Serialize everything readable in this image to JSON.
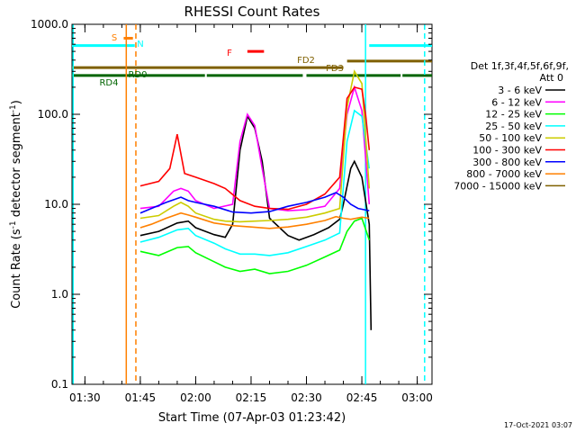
{
  "chart_data": {
    "type": "line",
    "title": "RHESSI Count Rates",
    "xlabel": "Start Time (07-Apr-03 01:23:42)",
    "ylabel_prefix": "Count Rate (s",
    "ylabel_sup": "-1",
    "ylabel_middle": " detector segment",
    "ylabel_suffix": ")",
    "timestamp": "17-Oct-2021 03:07",
    "y_scale": "log",
    "ylim": [
      0.1,
      1000
    ],
    "xlim_minutes": [
      86.5,
      184
    ],
    "y_ticks": [
      {
        "value": 1000,
        "label": "1000.0"
      },
      {
        "value": 100,
        "label": "100.0"
      },
      {
        "value": 10,
        "label": "10.0"
      },
      {
        "value": 1,
        "label": "1.0"
      },
      {
        "value": 0.1,
        "label": "0.1"
      }
    ],
    "x_ticks": [
      {
        "minutes": 90,
        "label": "01:30"
      },
      {
        "minutes": 105,
        "label": "01:45"
      },
      {
        "minutes": 120,
        "label": "02:00"
      },
      {
        "minutes": 135,
        "label": "02:15"
      },
      {
        "minutes": 150,
        "label": "02:30"
      },
      {
        "minutes": 165,
        "label": "02:45"
      },
      {
        "minutes": 180,
        "label": "03:00"
      }
    ],
    "legend": {
      "header1": "Det 1f,3f,4f,5f,6f,9f,",
      "header2": "Att 0",
      "placement": "right"
    },
    "series": [
      {
        "name": "3 - 6 keV",
        "color": "#000000",
        "points": [
          [
            105,
            4.5
          ],
          [
            110,
            5.0
          ],
          [
            115,
            6.2
          ],
          [
            118,
            6.5
          ],
          [
            120,
            5.5
          ],
          [
            125,
            4.6
          ],
          [
            128,
            4.3
          ],
          [
            130,
            6
          ],
          [
            132,
            40
          ],
          [
            134,
            95
          ],
          [
            136,
            70
          ],
          [
            138,
            30
          ],
          [
            140,
            7
          ],
          [
            145,
            4.5
          ],
          [
            148,
            4.0
          ],
          [
            152,
            4.6
          ],
          [
            156,
            5.5
          ],
          [
            159,
            6.8
          ],
          [
            160,
            10
          ],
          [
            162,
            25
          ],
          [
            163,
            30
          ],
          [
            165,
            20
          ],
          [
            167,
            6
          ],
          [
            167.5,
            0.4
          ]
        ]
      },
      {
        "name": "6 - 12 keV",
        "color": "#ff00ff",
        "points": [
          [
            105,
            9
          ],
          [
            110,
            9.5
          ],
          [
            114,
            14
          ],
          [
            116,
            15
          ],
          [
            118,
            14
          ],
          [
            120,
            11
          ],
          [
            125,
            9
          ],
          [
            130,
            10
          ],
          [
            132,
            50
          ],
          [
            134,
            100
          ],
          [
            136,
            75
          ],
          [
            138,
            25
          ],
          [
            140,
            9
          ],
          [
            145,
            8.5
          ],
          [
            150,
            8.7
          ],
          [
            155,
            9.5
          ],
          [
            159,
            15
          ],
          [
            161,
            100
          ],
          [
            163,
            200
          ],
          [
            165,
            110
          ],
          [
            167,
            10
          ]
        ]
      },
      {
        "name": "12 - 25 keV",
        "color": "#00ff00",
        "points": [
          [
            105,
            3.0
          ],
          [
            110,
            2.7
          ],
          [
            115,
            3.3
          ],
          [
            118,
            3.4
          ],
          [
            120,
            2.9
          ],
          [
            125,
            2.3
          ],
          [
            128,
            2.0
          ],
          [
            132,
            1.8
          ],
          [
            136,
            1.9
          ],
          [
            140,
            1.7
          ],
          [
            145,
            1.8
          ],
          [
            150,
            2.1
          ],
          [
            155,
            2.6
          ],
          [
            159,
            3.1
          ],
          [
            161,
            5
          ],
          [
            163,
            6.5
          ],
          [
            165,
            7
          ],
          [
            167,
            4
          ]
        ]
      },
      {
        "name": "25 - 50 keV",
        "color": "#00ffff",
        "points": [
          [
            105,
            3.8
          ],
          [
            110,
            4.3
          ],
          [
            115,
            5.2
          ],
          [
            118,
            5.4
          ],
          [
            120,
            4.5
          ],
          [
            125,
            3.7
          ],
          [
            128,
            3.2
          ],
          [
            132,
            2.8
          ],
          [
            136,
            2.8
          ],
          [
            140,
            2.7
          ],
          [
            145,
            2.9
          ],
          [
            150,
            3.4
          ],
          [
            155,
            4.0
          ],
          [
            159,
            4.8
          ],
          [
            161,
            50
          ],
          [
            163,
            110
          ],
          [
            165,
            95
          ],
          [
            167,
            25
          ]
        ]
      },
      {
        "name": "50 - 100 keV",
        "color": "#cccc00",
        "points": [
          [
            105,
            7
          ],
          [
            110,
            7.5
          ],
          [
            114,
            9.5
          ],
          [
            116,
            10.5
          ],
          [
            118,
            9.5
          ],
          [
            120,
            8
          ],
          [
            125,
            6.8
          ],
          [
            128,
            6.5
          ],
          [
            132,
            6.4
          ],
          [
            136,
            6.5
          ],
          [
            140,
            6.6
          ],
          [
            145,
            6.8
          ],
          [
            150,
            7.2
          ],
          [
            155,
            8.0
          ],
          [
            159,
            9
          ],
          [
            161,
            120
          ],
          [
            163,
            300
          ],
          [
            165,
            220
          ],
          [
            167,
            15
          ]
        ]
      },
      {
        "name": "100 - 300 keV",
        "color": "#ff0000",
        "points": [
          [
            105,
            16
          ],
          [
            110,
            18
          ],
          [
            113,
            25
          ],
          [
            115,
            60
          ],
          [
            117,
            22
          ],
          [
            120,
            20
          ],
          [
            125,
            17
          ],
          [
            128,
            15
          ],
          [
            132,
            11
          ],
          [
            136,
            9.5
          ],
          [
            140,
            9.0
          ],
          [
            145,
            8.8
          ],
          [
            150,
            10
          ],
          [
            155,
            13
          ],
          [
            159,
            20
          ],
          [
            161,
            150
          ],
          [
            163,
            200
          ],
          [
            165,
            190
          ],
          [
            166,
            100
          ],
          [
            167,
            40
          ]
        ]
      },
      {
        "name": "300 - 800 keV",
        "color": "#0000ff",
        "points": [
          [
            105,
            8
          ],
          [
            108,
            9
          ],
          [
            112,
            10.5
          ],
          [
            116,
            12
          ],
          [
            118,
            11
          ],
          [
            120,
            10.5
          ],
          [
            125,
            9.5
          ],
          [
            130,
            8.2
          ],
          [
            135,
            8.0
          ],
          [
            140,
            8.3
          ],
          [
            145,
            9.5
          ],
          [
            150,
            10.5
          ],
          [
            155,
            12
          ],
          [
            158,
            13.5
          ],
          [
            160,
            12
          ],
          [
            162,
            10
          ],
          [
            164,
            9
          ],
          [
            167,
            8.5
          ]
        ]
      },
      {
        "name": "800 - 7000 keV",
        "color": "#ff8000",
        "points": [
          [
            105,
            5.5
          ],
          [
            108,
            6
          ],
          [
            112,
            7
          ],
          [
            116,
            8
          ],
          [
            118,
            7.6
          ],
          [
            120,
            7.2
          ],
          [
            125,
            6.2
          ],
          [
            130,
            5.8
          ],
          [
            135,
            5.6
          ],
          [
            140,
            5.4
          ],
          [
            145,
            5.6
          ],
          [
            150,
            6.0
          ],
          [
            155,
            6.6
          ],
          [
            158,
            7.3
          ],
          [
            160,
            7.0
          ],
          [
            162,
            6.8
          ],
          [
            165,
            7.2
          ],
          [
            167,
            7
          ]
        ]
      },
      {
        "name": "7000 - 15000 keV",
        "color": "#7f6000",
        "points": []
      }
    ],
    "annotations": [
      {
        "label": "S",
        "color": "#ff8000"
      },
      {
        "label": "N",
        "color": "#00ffff"
      },
      {
        "label": "F",
        "color": "#ff0000"
      },
      {
        "label": "FD2",
        "color": "#7f6000"
      },
      {
        "label": "FD3",
        "color": "#7f6000"
      },
      {
        "label": "RD0",
        "color": "#006400"
      },
      {
        "label": "RD4",
        "color": "#006400"
      }
    ],
    "bars": [
      {
        "color": "#ff8000",
        "value": 700,
        "segments": [
          [
            100.5,
            103
          ]
        ]
      },
      {
        "color": "#00ffff",
        "value": 580,
        "segments": [
          [
            86.5,
            103.5
          ],
          [
            167,
            184
          ]
        ]
      },
      {
        "color": "#ff0000",
        "value": 500,
        "segments": [
          [
            134,
            138.5
          ]
        ]
      },
      {
        "color": "#7f6000",
        "value": 390,
        "segments": [
          [
            161,
            184
          ]
        ]
      },
      {
        "color": "#7f6000",
        "value": 330,
        "segments": [
          [
            86.5,
            160
          ]
        ]
      },
      {
        "color": "#006400",
        "value": 270,
        "segments": [
          [
            86.5,
            122.5
          ],
          [
            123,
            149
          ],
          [
            150,
            175.5
          ],
          [
            176,
            184
          ]
        ]
      }
    ],
    "vlines": [
      {
        "minutes": 86.8,
        "color": "#00ffff",
        "dashed": false
      },
      {
        "minutes": 101.2,
        "color": "#ff8000",
        "dashed": false
      },
      {
        "minutes": 103.8,
        "color": "#ff8000",
        "dashed": true
      },
      {
        "minutes": 166,
        "color": "#00ffff",
        "dashed": false
      },
      {
        "minutes": 182,
        "color": "#00ffff",
        "dashed": true
      }
    ]
  }
}
